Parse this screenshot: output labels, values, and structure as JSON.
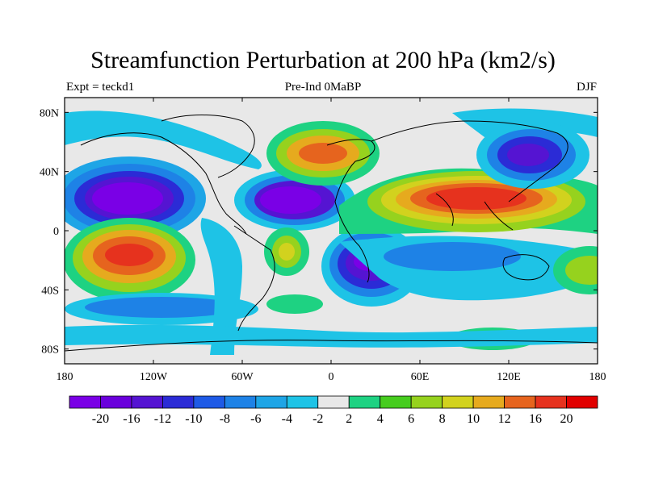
{
  "title": "Streamfunction Perturbation at 200 hPa (km2/s)",
  "subtitle_left": "Expt = teckd1",
  "subtitle_center": "Pre-Ind 0MaBP",
  "subtitle_right": "DJF",
  "chart_data": {
    "type": "heatmap",
    "x_ticks": [
      "180",
      "120W",
      "60W",
      "0",
      "60E",
      "120E",
      "180"
    ],
    "x_tick_values": [
      -180,
      -120,
      -60,
      0,
      60,
      120,
      180
    ],
    "y_ticks": [
      "80N",
      "40N",
      "0",
      "40S",
      "80S"
    ],
    "y_tick_values": [
      80,
      40,
      0,
      -40,
      -80
    ],
    "xlim": [
      -180,
      180
    ],
    "ylim": [
      -90,
      90
    ],
    "colorbar": {
      "labels": [
        "-20",
        "-16",
        "-12",
        "-10",
        "-8",
        "-6",
        "-4",
        "-2",
        "2",
        "4",
        "6",
        "8",
        "10",
        "12",
        "16",
        "20"
      ],
      "colors": [
        "#7a00e6",
        "#6a00dc",
        "#5514d2",
        "#2b2bd6",
        "#1e5ae6",
        "#1e82e6",
        "#1ea5e6",
        "#1ec3e6",
        "#e8e8e8",
        "#1ed282",
        "#46cd1e",
        "#96d21e",
        "#d2d21e",
        "#e6aa1e",
        "#e6641e",
        "#e6321e",
        "#e10000"
      ]
    },
    "features": [
      {
        "lon": -130,
        "lat": 18,
        "value": -18
      },
      {
        "lon": -135,
        "lat": -16,
        "value": 14
      },
      {
        "lon": -25,
        "lat": 22,
        "value": -18
      },
      {
        "lon": 25,
        "lat": -22,
        "value": -16
      },
      {
        "lon": -5,
        "lat": 52,
        "value": 14
      },
      {
        "lon": 95,
        "lat": 20,
        "value": 20
      },
      {
        "lon": 130,
        "lat": 50,
        "value": -16
      },
      {
        "lon": -30,
        "lat": -18,
        "value": 9
      },
      {
        "lon": 170,
        "lat": -30,
        "value": 6
      },
      {
        "lon": 140,
        "lat": -25,
        "value": -6
      },
      {
        "lon": -70,
        "lat": -40,
        "value": -6
      }
    ]
  },
  "icons": {
    "coastlines": "world-coastline-outline"
  }
}
